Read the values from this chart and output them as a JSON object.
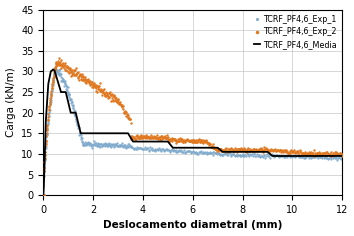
{
  "title": "",
  "xlabel": "Deslocamento diametral (mm)",
  "ylabel": "Carga (kN/m)",
  "xlim": [
    0,
    12
  ],
  "ylim": [
    0,
    45
  ],
  "xticks": [
    0,
    2,
    4,
    6,
    8,
    10,
    12
  ],
  "yticks": [
    0,
    5,
    10,
    15,
    20,
    25,
    30,
    35,
    40,
    45
  ],
  "legend_labels": [
    "TCRF_PF4,6_Exp_1",
    "TCRF_PF4,6_Exp_2",
    "TCRF_PF4,6_Media"
  ],
  "colors": {
    "exp1": "#7faacc",
    "exp2": "#e07820",
    "media": "#000000"
  }
}
